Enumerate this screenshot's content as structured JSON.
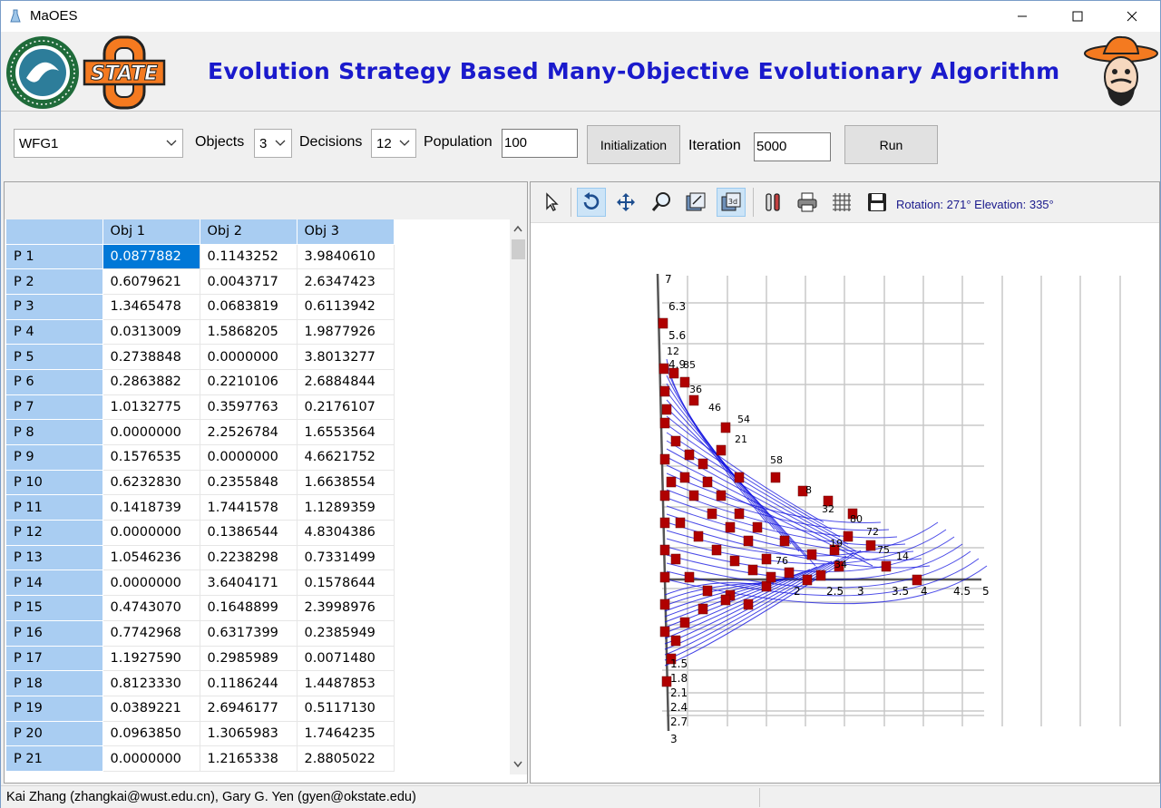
{
  "window": {
    "title": "MaOES"
  },
  "banner": {
    "headline": "Evolution Strategy Based Many-Objective Evolutionary Algorithm",
    "logo_text": "STATE"
  },
  "controls": {
    "problem": "WFG1",
    "objects_label": "Objects",
    "objects": "3",
    "decisions_label": "Decisions",
    "decisions": "12",
    "population_label": "Population",
    "population": "100",
    "initialization_label": "Initialization",
    "iteration_label": "Iteration",
    "iteration": "5000",
    "run_label": "Run"
  },
  "grid": {
    "columns": [
      "Obj 1",
      "Obj 2",
      "Obj 3"
    ],
    "rows": [
      {
        "name": "P 1",
        "values": [
          "0.0877882",
          "0.1143252",
          "3.9840610"
        ]
      },
      {
        "name": "P 2",
        "values": [
          "0.6079621",
          "0.0043717",
          "2.6347423"
        ]
      },
      {
        "name": "P 3",
        "values": [
          "1.3465478",
          "0.0683819",
          "0.6113942"
        ]
      },
      {
        "name": "P 4",
        "values": [
          "0.0313009",
          "1.5868205",
          "1.9877926"
        ]
      },
      {
        "name": "P 5",
        "values": [
          "0.2738848",
          "0.0000000",
          "3.8013277"
        ]
      },
      {
        "name": "P 6",
        "values": [
          "0.2863882",
          "0.2210106",
          "2.6884844"
        ]
      },
      {
        "name": "P 7",
        "values": [
          "1.0132775",
          "0.3597763",
          "0.2176107"
        ]
      },
      {
        "name": "P 8",
        "values": [
          "0.0000000",
          "2.2526784",
          "1.6553564"
        ]
      },
      {
        "name": "P 9",
        "values": [
          "0.1576535",
          "0.0000000",
          "4.6621752"
        ]
      },
      {
        "name": "P 10",
        "values": [
          "0.6232830",
          "0.2355848",
          "1.6638554"
        ]
      },
      {
        "name": "P 11",
        "values": [
          "0.1418739",
          "1.7441578",
          "1.1289359"
        ]
      },
      {
        "name": "P 12",
        "values": [
          "0.0000000",
          "0.1386544",
          "4.8304386"
        ]
      },
      {
        "name": "P 13",
        "values": [
          "1.0546236",
          "0.2238298",
          "0.7331499"
        ]
      },
      {
        "name": "P 14",
        "values": [
          "0.0000000",
          "3.6404171",
          "0.1578644"
        ]
      },
      {
        "name": "P 15",
        "values": [
          "0.4743070",
          "0.1648899",
          "2.3998976"
        ]
      },
      {
        "name": "P 16",
        "values": [
          "0.7742968",
          "0.6317399",
          "0.2385949"
        ]
      },
      {
        "name": "P 17",
        "values": [
          "1.1927590",
          "0.2985989",
          "0.0071480"
        ]
      },
      {
        "name": "P 18",
        "values": [
          "0.8123330",
          "0.1186244",
          "1.4487853"
        ]
      },
      {
        "name": "P 19",
        "values": [
          "0.0389221",
          "2.6946177",
          "0.5117130"
        ]
      },
      {
        "name": "P 20",
        "values": [
          "0.0963850",
          "1.3065983",
          "1.7464235"
        ]
      },
      {
        "name": "P 21",
        "values": [
          "0.0000000",
          "1.2165338",
          "2.8805022"
        ]
      }
    ]
  },
  "plot": {
    "status": "Rotation: 271° Elevation: 335°",
    "vertical_ticks": [
      "7",
      "6.3",
      "5.6",
      "4.9"
    ],
    "horizontal_ticks": [
      "2",
      "2.5",
      "3",
      "3.5",
      "4",
      "4.5",
      "5"
    ],
    "depth_ticks": [
      "1.5",
      "1.8",
      "2.1",
      "2.4",
      "2.7",
      "3"
    ],
    "point_labels": [
      "12",
      "85",
      "36",
      "46",
      "54",
      "21",
      "58",
      "8",
      "32",
      "80",
      "72",
      "75",
      "14",
      "19",
      "34",
      "76"
    ],
    "marker_color": "#b00000",
    "line_color": "#0000dd"
  },
  "status": {
    "credits": "Kai Zhang (zhangkai@wust.edu.cn),  Gary G. Yen (gyen@okstate.edu)"
  }
}
